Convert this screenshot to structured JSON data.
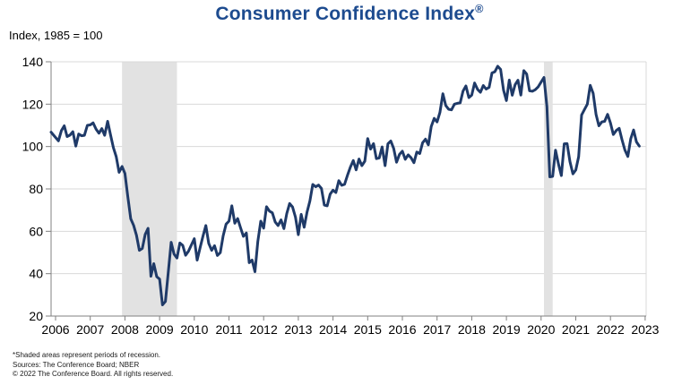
{
  "header": {
    "title": "Consumer Confidence Index",
    "registered": "®",
    "subtitle": "Index, 1985 = 100"
  },
  "footnotes": [
    "*Shaded areas represent periods of recession.",
    "Sources: The Conference Board; NBER",
    "© 2022 The Conference Board. All rights reserved."
  ],
  "colors": {
    "title": "#1d4b8f",
    "line": "#1f3a68",
    "gridline": "#d9d9d9",
    "recession_band": "#e2e2e2",
    "axis": "#808080",
    "tick_label": "#000000",
    "footnote": "#1a1a1a"
  },
  "chart_data": {
    "type": "line",
    "title": "Consumer Confidence Index®",
    "xlabel": "",
    "ylabel": "Index, 1985 = 100",
    "ylim": [
      20,
      140
    ],
    "yticks": [
      20,
      40,
      60,
      80,
      100,
      120,
      140
    ],
    "xticks": [
      2006,
      2007,
      2008,
      2009,
      2010,
      2011,
      2012,
      2013,
      2014,
      2015,
      2016,
      2017,
      2018,
      2019,
      2020,
      2021,
      2022,
      2023
    ],
    "grid": "horizontal",
    "legend": "none",
    "recessions": [
      {
        "start": "2007-12",
        "end": "2009-06"
      },
      {
        "start": "2020-02",
        "end": "2020-04"
      }
    ],
    "series": [
      {
        "name": "Consumer Confidence Index (1985 = 100)",
        "frequency": "monthly",
        "start": "2006-01",
        "end": "2022-11",
        "values": [
          106.8,
          102.7,
          107.5,
          109.8,
          104.7,
          105.4,
          107.0,
          100.2,
          105.9,
          105.1,
          105.3,
          110.0,
          110.2,
          111.2,
          108.2,
          106.3,
          108.5,
          105.3,
          111.9,
          105.6,
          99.5,
          95.2,
          87.8,
          90.6,
          87.3,
          76.4,
          65.9,
          62.8,
          58.1,
          51.0,
          51.9,
          58.5,
          61.4,
          38.8,
          44.7,
          38.6,
          37.4,
          25.3,
          26.9,
          40.8,
          54.8,
          49.3,
          47.4,
          54.5,
          53.4,
          48.7,
          50.6,
          53.6,
          56.5,
          46.4,
          52.3,
          57.7,
          62.7,
          54.3,
          51.0,
          53.2,
          48.6,
          49.9,
          57.8,
          63.4,
          64.8,
          72.0,
          63.8,
          66.0,
          61.7,
          57.6,
          59.2,
          45.2,
          46.4,
          40.9,
          55.2,
          64.8,
          61.5,
          71.6,
          69.5,
          68.7,
          64.4,
          62.7,
          65.4,
          61.3,
          68.4,
          73.1,
          71.5,
          66.7,
          58.4,
          68.0,
          61.9,
          69.0,
          74.3,
          82.1,
          81.0,
          81.8,
          80.2,
          72.4,
          72.0,
          77.5,
          79.4,
          78.3,
          83.9,
          81.7,
          82.2,
          86.4,
          90.3,
          93.4,
          89.0,
          94.1,
          91.0,
          93.1,
          103.8,
          98.8,
          101.4,
          94.3,
          94.6,
          99.8,
          91.0,
          101.3,
          102.6,
          99.1,
          92.6,
          96.3,
          97.8,
          94.0,
          96.1,
          94.7,
          92.4,
          97.4,
          96.7,
          101.8,
          103.5,
          100.8,
          109.4,
          113.3,
          111.6,
          116.1,
          124.9,
          119.4,
          117.6,
          117.3,
          120.0,
          120.4,
          120.6,
          126.2,
          128.6,
          123.1,
          124.3,
          130.0,
          127.0,
          125.6,
          128.8,
          127.1,
          127.9,
          134.7,
          135.3,
          137.9,
          136.4,
          126.6,
          121.7,
          131.4,
          124.2,
          129.2,
          131.3,
          124.3,
          135.8,
          134.2,
          126.3,
          126.1,
          126.8,
          128.2,
          130.4,
          132.6,
          118.8,
          85.7,
          85.9,
          98.3,
          91.7,
          86.3,
          101.3,
          101.4,
          92.9,
          87.1,
          88.9,
          95.2,
          114.9,
          117.5,
          120.0,
          128.9,
          125.1,
          115.2,
          109.8,
          111.6,
          111.9,
          115.2,
          111.1,
          105.7,
          107.6,
          108.6,
          103.2,
          98.4,
          95.3,
          103.6,
          107.8,
          102.2,
          100.2
        ]
      }
    ]
  }
}
